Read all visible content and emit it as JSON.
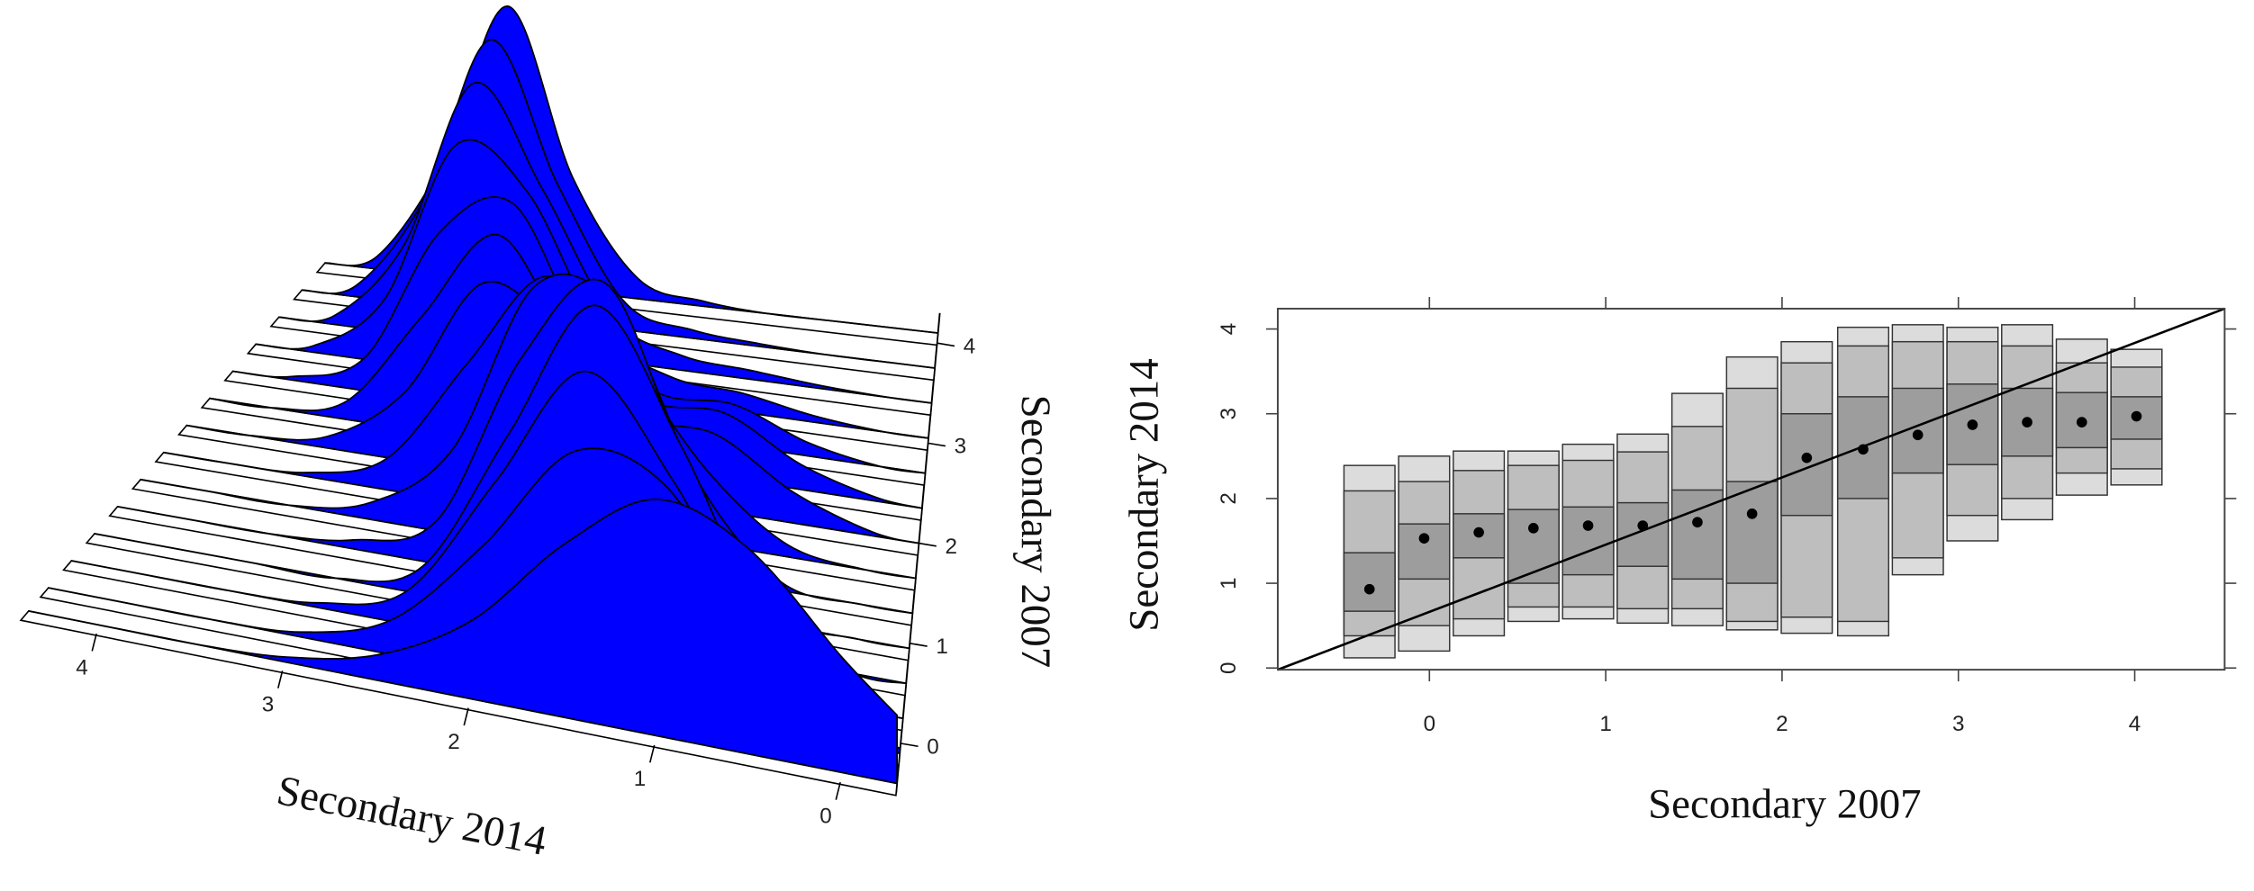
{
  "chart_data": [
    {
      "type": "ridgeline",
      "xlabel": "Secondary 2014",
      "ylabel": "Secondary 2007",
      "color": "#0000ff",
      "x": [
        -0.3,
        0,
        0.5,
        1,
        1.5,
        2,
        2.5,
        3,
        3.5,
        4,
        4.4
      ],
      "xlim": [
        4.4,
        -0.3
      ],
      "xticks": [
        0,
        1,
        2,
        3,
        4
      ],
      "ylim": [
        -0.5,
        4.3
      ],
      "yticks": [
        0,
        1,
        2,
        3,
        4
      ],
      "series": [
        {
          "y": 4.1,
          "values": [
            0,
            0,
            0,
            0,
            0.02,
            0.08,
            0.45,
            1.1,
            0.45,
            0.05,
            0
          ]
        },
        {
          "y": 3.75,
          "values": [
            0,
            0,
            0,
            0.01,
            0.03,
            0.1,
            0.5,
            1.0,
            0.38,
            0.04,
            0
          ]
        },
        {
          "y": 3.4,
          "values": [
            0,
            0,
            0.01,
            0.03,
            0.05,
            0.15,
            0.55,
            0.88,
            0.3,
            0.03,
            0
          ]
        },
        {
          "y": 3.05,
          "values": [
            0,
            0,
            0.02,
            0.06,
            0.08,
            0.2,
            0.6,
            0.72,
            0.2,
            0.02,
            0
          ]
        },
        {
          "y": 2.7,
          "values": [
            0,
            0,
            0.04,
            0.12,
            0.12,
            0.25,
            0.62,
            0.5,
            0.1,
            0.01,
            0
          ]
        },
        {
          "y": 2.35,
          "values": [
            0,
            0.01,
            0.07,
            0.18,
            0.18,
            0.3,
            0.58,
            0.32,
            0.05,
            0,
            0
          ]
        },
        {
          "y": 2.0,
          "values": [
            0,
            0.01,
            0.08,
            0.2,
            0.22,
            0.4,
            0.5,
            0.18,
            0.03,
            0,
            0
          ]
        },
        {
          "y": 1.65,
          "values": [
            0,
            0,
            0.03,
            0.18,
            0.42,
            0.6,
            0.35,
            0.08,
            0.01,
            0,
            0
          ]
        },
        {
          "y": 1.3,
          "values": [
            0,
            0,
            0.02,
            0.22,
            0.6,
            0.62,
            0.2,
            0.04,
            0,
            0,
            0
          ]
        },
        {
          "y": 0.95,
          "values": [
            0,
            0,
            0.03,
            0.3,
            0.7,
            0.5,
            0.1,
            0.02,
            0,
            0,
            0
          ]
        },
        {
          "y": 0.6,
          "values": [
            0,
            0,
            0.07,
            0.42,
            0.69,
            0.38,
            0.06,
            0,
            0,
            0,
            0
          ]
        },
        {
          "y": 0.25,
          "values": [
            0,
            0.01,
            0.11,
            0.4,
            0.59,
            0.33,
            0.07,
            0.01,
            0,
            0,
            0
          ]
        },
        {
          "y": -0.1,
          "values": [
            0.01,
            0.05,
            0.2,
            0.44,
            0.47,
            0.25,
            0.07,
            0.01,
            0,
            0,
            0
          ]
        },
        {
          "y": -0.4,
          "values": [
            0.13,
            0.22,
            0.39,
            0.45,
            0.33,
            0.15,
            0.05,
            0.01,
            0,
            0,
            0
          ]
        }
      ]
    },
    {
      "type": "quantile-box",
      "xlabel": "Secondary 2007",
      "ylabel": "Secondary 2014",
      "xlim": [
        -0.86,
        4.51
      ],
      "xticks": [
        0,
        1,
        2,
        3,
        4
      ],
      "ylim": [
        -0.02,
        4.24
      ],
      "yticks": [
        0,
        1,
        2,
        3,
        4
      ],
      "fills": [
        "#dcdcdc",
        "#bebebe",
        "#9d9d9d"
      ],
      "reference_line": {
        "x": [
          -0.86,
          4.51
        ],
        "y": [
          -0.02,
          4.24
        ]
      },
      "boxes": [
        {
          "x": -0.34,
          "q": [
            0.12,
            0.38,
            0.67,
            1.36,
            2.09,
            2.39
          ],
          "median": 0.93
        },
        {
          "x": -0.03,
          "q": [
            0.2,
            0.5,
            1.05,
            1.7,
            2.2,
            2.5
          ],
          "median": 1.53
        },
        {
          "x": 0.28,
          "q": [
            0.38,
            0.58,
            1.3,
            1.82,
            2.33,
            2.56
          ],
          "median": 1.6
        },
        {
          "x": 0.59,
          "q": [
            0.55,
            0.72,
            1.0,
            1.87,
            2.39,
            2.56
          ],
          "median": 1.65
        },
        {
          "x": 0.9,
          "q": [
            0.58,
            0.72,
            1.1,
            1.9,
            2.45,
            2.64
          ],
          "median": 1.68
        },
        {
          "x": 1.21,
          "q": [
            0.53,
            0.7,
            1.2,
            1.95,
            2.55,
            2.76
          ],
          "median": 1.68
        },
        {
          "x": 1.52,
          "q": [
            0.5,
            0.7,
            1.05,
            2.1,
            2.85,
            3.24
          ],
          "median": 1.72
        },
        {
          "x": 1.83,
          "q": [
            0.45,
            0.55,
            1.0,
            2.2,
            3.3,
            3.67
          ],
          "median": 1.82
        },
        {
          "x": 2.14,
          "q": [
            0.41,
            0.6,
            1.8,
            3.0,
            3.6,
            3.85
          ],
          "median": 2.48
        },
        {
          "x": 2.46,
          "q": [
            0.38,
            0.55,
            2.0,
            3.2,
            3.8,
            4.02
          ],
          "median": 2.58
        },
        {
          "x": 2.77,
          "q": [
            1.1,
            1.3,
            2.3,
            3.3,
            3.85,
            4.05
          ],
          "median": 2.75
        },
        {
          "x": 3.08,
          "q": [
            1.5,
            1.8,
            2.4,
            3.35,
            3.85,
            4.02
          ],
          "median": 2.87
        },
        {
          "x": 3.39,
          "q": [
            1.75,
            2.0,
            2.5,
            3.3,
            3.8,
            4.05
          ],
          "median": 2.9
        },
        {
          "x": 3.7,
          "q": [
            2.04,
            2.3,
            2.6,
            3.25,
            3.6,
            3.88
          ],
          "median": 2.9
        },
        {
          "x": 4.01,
          "q": [
            2.16,
            2.35,
            2.7,
            3.2,
            3.55,
            3.76
          ],
          "median": 2.97
        }
      ]
    }
  ]
}
